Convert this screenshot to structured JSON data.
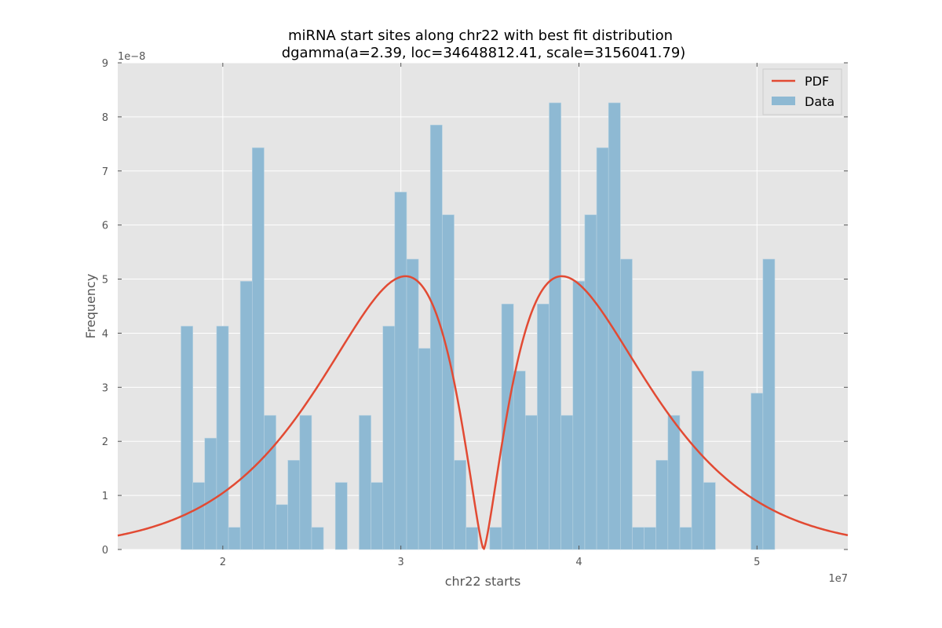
{
  "chart_data": {
    "type": "bar",
    "title": "miRNA start sites along chr22 with best fit distribution",
    "subtitle": "dgamma(a=2.39, loc=34648812.41, scale=3156041.79)",
    "xlabel": "chr22 starts",
    "ylabel": "Frequency",
    "x_offset_label": "1e7",
    "y_offset_label": "1e−8",
    "x_scale": 10000000,
    "y_scale": 1e-08,
    "xlim": [
      14100000,
      55100000
    ],
    "ylim": [
      0,
      9e-08
    ],
    "x_ticks": [
      20000000,
      30000000,
      40000000,
      50000000
    ],
    "x_tick_labels": [
      "2",
      "3",
      "4",
      "5"
    ],
    "y_ticks": [
      0,
      1e-08,
      2e-08,
      3e-08,
      4e-08,
      5e-08,
      6e-08,
      7e-08,
      8e-08,
      9e-08
    ],
    "y_tick_labels": [
      "0",
      "1",
      "2",
      "3",
      "4",
      "5",
      "6",
      "7",
      "8",
      "9"
    ],
    "grid": true,
    "legend_position": "top-right",
    "legend": [
      "PDF",
      "Data"
    ],
    "colors": {
      "data": "#8eb9d3",
      "pdf": "#e24a33",
      "plot_bg": "#e5e5e5",
      "grid": "#ffffff"
    },
    "histogram": {
      "name": "Data",
      "bin_start": 17650000,
      "bin_width": 667000,
      "values": [
        4.13e-08,
        1.24e-08,
        2.06e-08,
        4.13e-08,
        4.1e-09,
        4.96e-08,
        7.43e-08,
        2.48e-08,
        8.3e-09,
        1.65e-08,
        2.48e-08,
        4.1e-09,
        0,
        1.24e-08,
        0,
        2.48e-08,
        1.24e-08,
        4.13e-08,
        6.61e-08,
        5.37e-08,
        3.72e-08,
        7.85e-08,
        6.19e-08,
        1.65e-08,
        4.1e-09,
        0,
        4.1e-09,
        4.54e-08,
        3.3e-08,
        2.48e-08,
        4.54e-08,
        8.26e-08,
        2.48e-08,
        4.96e-08,
        6.19e-08,
        7.43e-08,
        8.26e-08,
        5.37e-08,
        4.1e-09,
        4.1e-09,
        1.65e-08,
        2.48e-08,
        4.1e-09,
        3.3e-08,
        1.24e-08,
        0,
        0,
        0,
        2.89e-08,
        5.37e-08
      ]
    },
    "pdf": {
      "name": "PDF",
      "distribution": "dgamma",
      "a": 2.39,
      "loc": 34648812.41,
      "scale": 3156041.79
    }
  }
}
